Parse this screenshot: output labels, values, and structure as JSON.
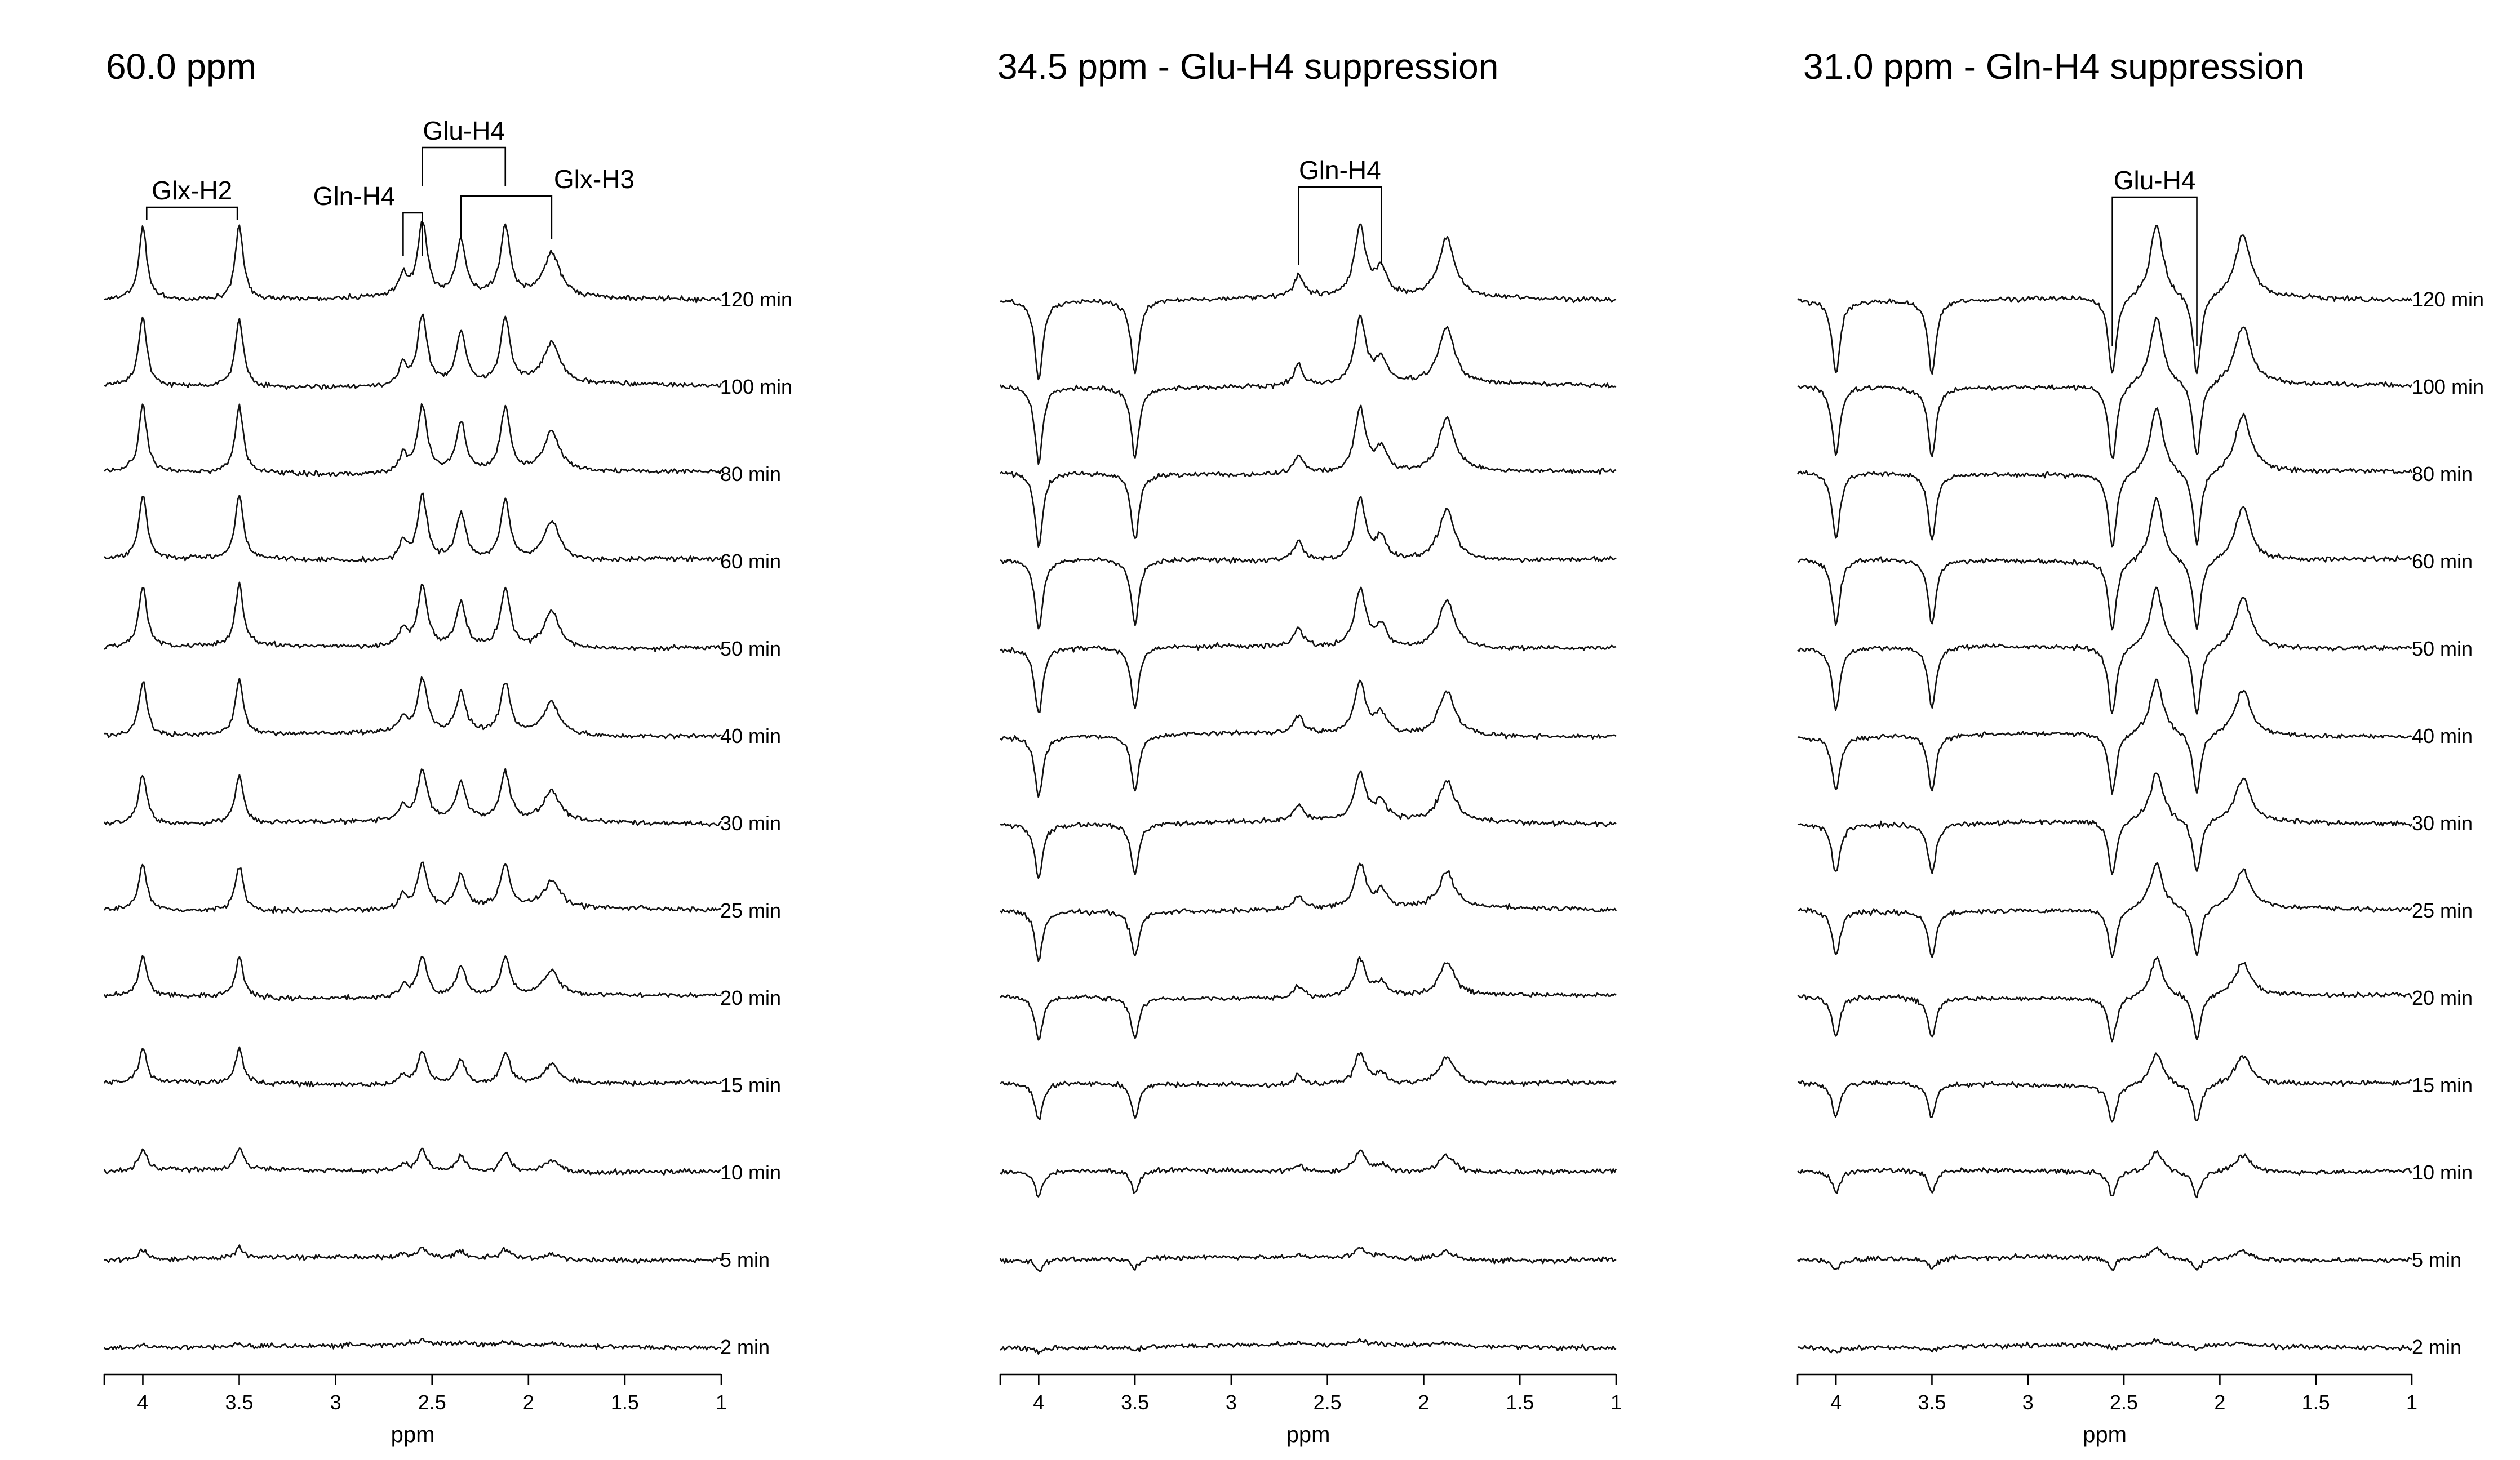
{
  "chart_data": [
    {
      "type": "line",
      "title": "60.0 ppm",
      "mode": "positive",
      "xlabel": "ppm",
      "xlim": [
        4.2,
        1.0
      ],
      "x_reversed": true,
      "xticks": [
        4,
        3.5,
        3,
        2.5,
        2,
        1.5,
        1
      ],
      "xtick_labels": [
        "4",
        "3.5",
        "3",
        "2.5",
        "2",
        "1.5",
        "1"
      ],
      "series": [
        {
          "name": "120 min",
          "gain": 1.0
        },
        {
          "name": "100 min",
          "gain": 0.95
        },
        {
          "name": "80 min",
          "gain": 0.92
        },
        {
          "name": "60 min",
          "gain": 0.88
        },
        {
          "name": "50 min",
          "gain": 0.84
        },
        {
          "name": "40 min",
          "gain": 0.75
        },
        {
          "name": "30 min",
          "gain": 0.68
        },
        {
          "name": "25 min",
          "gain": 0.62
        },
        {
          "name": "20 min",
          "gain": 0.55
        },
        {
          "name": "15 min",
          "gain": 0.46
        },
        {
          "name": "10 min",
          "gain": 0.3
        },
        {
          "name": "5 min",
          "gain": 0.14
        },
        {
          "name": "2 min",
          "gain": 0.05
        }
      ],
      "peaks": [
        {
          "ppm": 4.0,
          "height": 1.0,
          "width": 0.025
        },
        {
          "ppm": 3.5,
          "height": 1.0,
          "width": 0.025
        },
        {
          "ppm": 2.65,
          "height": 0.28,
          "width": 0.025
        },
        {
          "ppm": 2.55,
          "height": 1.0,
          "width": 0.03
        },
        {
          "ppm": 2.35,
          "height": 0.75,
          "width": 0.03
        },
        {
          "ppm": 2.12,
          "height": 0.95,
          "width": 0.03
        },
        {
          "ppm": 1.88,
          "height": 0.6,
          "width": 0.05
        }
      ],
      "annotations": [
        {
          "text": "Glx-H2",
          "x1": 3.98,
          "x2": 3.51
        },
        {
          "text": "Gln-H4",
          "x1": 2.65,
          "x2": 2.55
        },
        {
          "text": "Glu-H4",
          "x1": 2.55,
          "x2": 2.12
        },
        {
          "text": "Glx-H3",
          "x1": 2.35,
          "x2": 1.88
        }
      ]
    },
    {
      "type": "line",
      "title": "34.5 ppm - Glu-H4 suppression",
      "mode": "glu_suppressed",
      "xlabel": "ppm",
      "xlim": [
        4.2,
        1.0
      ],
      "x_reversed": true,
      "xticks": [
        4,
        3.5,
        3,
        2.5,
        2,
        1.5,
        1
      ],
      "xtick_labels": [
        "4",
        "3.5",
        "3",
        "2.5",
        "2",
        "1.5",
        "1"
      ],
      "series": [
        {
          "name": "120 min",
          "gain": 1.0
        },
        {
          "name": "100 min",
          "gain": 0.95
        },
        {
          "name": "80 min",
          "gain": 0.92
        },
        {
          "name": "60 min",
          "gain": 0.88
        },
        {
          "name": "50 min",
          "gain": 0.84
        },
        {
          "name": "40 min",
          "gain": 0.75
        },
        {
          "name": "30 min",
          "gain": 0.68
        },
        {
          "name": "25 min",
          "gain": 0.62
        },
        {
          "name": "20 min",
          "gain": 0.55
        },
        {
          "name": "15 min",
          "gain": 0.46
        },
        {
          "name": "10 min",
          "gain": 0.3
        },
        {
          "name": "5 min",
          "gain": 0.14
        },
        {
          "name": "2 min",
          "gain": 0.05
        }
      ],
      "peaks": [
        {
          "ppm": 4.0,
          "height": -1.1,
          "width": 0.025
        },
        {
          "ppm": 3.5,
          "height": -1.0,
          "width": 0.025
        },
        {
          "ppm": 2.65,
          "height": 0.3,
          "width": 0.03
        },
        {
          "ppm": 2.33,
          "height": 0.95,
          "width": 0.035
        },
        {
          "ppm": 2.22,
          "height": 0.35,
          "width": 0.035
        },
        {
          "ppm": 1.88,
          "height": 0.8,
          "width": 0.05
        }
      ],
      "annotations": [
        {
          "text": "Gln-H4",
          "x1": 2.65,
          "x2": 2.22
        }
      ]
    },
    {
      "type": "line",
      "title": "31.0 ppm - Gln-H4 suppression",
      "mode": "gln_suppressed",
      "xlabel": "ppm",
      "xlim": [
        4.2,
        1.0
      ],
      "x_reversed": true,
      "xticks": [
        4,
        3.5,
        3,
        2.5,
        2,
        1.5,
        1
      ],
      "xtick_labels": [
        "4",
        "3.5",
        "3",
        "2.5",
        "2",
        "1.5",
        "1"
      ],
      "series": [
        {
          "name": "120 min",
          "gain": 1.0
        },
        {
          "name": "100 min",
          "gain": 0.95
        },
        {
          "name": "80 min",
          "gain": 0.92
        },
        {
          "name": "60 min",
          "gain": 0.88
        },
        {
          "name": "50 min",
          "gain": 0.84
        },
        {
          "name": "40 min",
          "gain": 0.75
        },
        {
          "name": "30 min",
          "gain": 0.68
        },
        {
          "name": "25 min",
          "gain": 0.62
        },
        {
          "name": "20 min",
          "gain": 0.55
        },
        {
          "name": "15 min",
          "gain": 0.46
        },
        {
          "name": "10 min",
          "gain": 0.3
        },
        {
          "name": "5 min",
          "gain": 0.14
        },
        {
          "name": "2 min",
          "gain": 0.05
        }
      ],
      "peaks": [
        {
          "ppm": 4.0,
          "height": -1.0,
          "width": 0.025
        },
        {
          "ppm": 3.5,
          "height": -1.0,
          "width": 0.025
        },
        {
          "ppm": 2.56,
          "height": -1.1,
          "width": 0.025
        },
        {
          "ppm": 2.33,
          "height": 1.0,
          "width": 0.04
        },
        {
          "ppm": 2.12,
          "height": -1.1,
          "width": 0.025
        },
        {
          "ppm": 1.88,
          "height": 0.85,
          "width": 0.05
        }
      ],
      "annotations": [
        {
          "text": "Glu-H4",
          "x1": 2.56,
          "x2": 2.12
        }
      ]
    }
  ]
}
